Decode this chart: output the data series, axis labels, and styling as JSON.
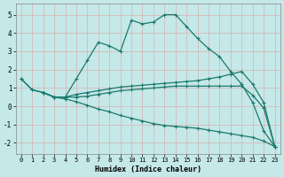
{
  "xlabel": "Humidex (Indice chaleur)",
  "bg_color": "#c5e8e8",
  "grid_color": "#b0d8d8",
  "line_color": "#1a7a6e",
  "xlim": [
    -0.5,
    23.5
  ],
  "ylim": [
    -2.6,
    5.6
  ],
  "xticks": [
    0,
    1,
    2,
    3,
    4,
    5,
    6,
    7,
    8,
    9,
    10,
    11,
    12,
    13,
    14,
    15,
    16,
    17,
    18,
    19,
    20,
    21,
    22,
    23
  ],
  "yticks": [
    -2,
    -1,
    0,
    1,
    2,
    3,
    4,
    5
  ],
  "line1_x": [
    0,
    1,
    2,
    3,
    4,
    5,
    6,
    7,
    8,
    9,
    10,
    11,
    12,
    13,
    14,
    15,
    16,
    17,
    18,
    19,
    20,
    21,
    22,
    23
  ],
  "line1_y": [
    1.5,
    0.9,
    0.75,
    0.5,
    0.5,
    1.5,
    2.5,
    3.5,
    3.3,
    3.0,
    4.7,
    4.5,
    4.6,
    5.0,
    5.0,
    4.35,
    3.7,
    3.15,
    2.7,
    1.9,
    1.2,
    0.2,
    -1.35,
    -2.2
  ],
  "line2_x": [
    0,
    1,
    2,
    3,
    4,
    5,
    6,
    7,
    8,
    9,
    10,
    11,
    12,
    13,
    14,
    15,
    16,
    17,
    18,
    19,
    20,
    21,
    22,
    23
  ],
  "line2_y": [
    1.5,
    0.9,
    0.75,
    0.5,
    0.5,
    0.65,
    0.75,
    0.85,
    0.95,
    1.05,
    1.1,
    1.15,
    1.2,
    1.25,
    1.3,
    1.35,
    1.4,
    1.5,
    1.6,
    1.75,
    1.9,
    1.2,
    0.2,
    -2.2
  ],
  "line3_x": [
    2,
    3,
    4,
    5,
    6,
    7,
    8,
    9,
    10,
    11,
    12,
    13,
    14,
    15,
    16,
    17,
    18,
    19,
    20,
    21,
    22,
    23
  ],
  "line3_y": [
    0.75,
    0.5,
    0.5,
    0.5,
    0.55,
    0.65,
    0.75,
    0.85,
    0.9,
    0.95,
    1.0,
    1.05,
    1.1,
    1.1,
    1.1,
    1.1,
    1.1,
    1.1,
    1.1,
    0.6,
    -0.1,
    -2.2
  ],
  "line4_x": [
    2,
    3,
    4,
    5,
    6,
    7,
    8,
    9,
    10,
    11,
    12,
    13,
    14,
    15,
    16,
    17,
    18,
    19,
    20,
    21,
    22,
    23
  ],
  "line4_y": [
    0.75,
    0.5,
    0.4,
    0.25,
    0.05,
    -0.15,
    -0.3,
    -0.5,
    -0.65,
    -0.8,
    -0.95,
    -1.05,
    -1.1,
    -1.15,
    -1.2,
    -1.3,
    -1.4,
    -1.5,
    -1.6,
    -1.7,
    -1.9,
    -2.2
  ]
}
